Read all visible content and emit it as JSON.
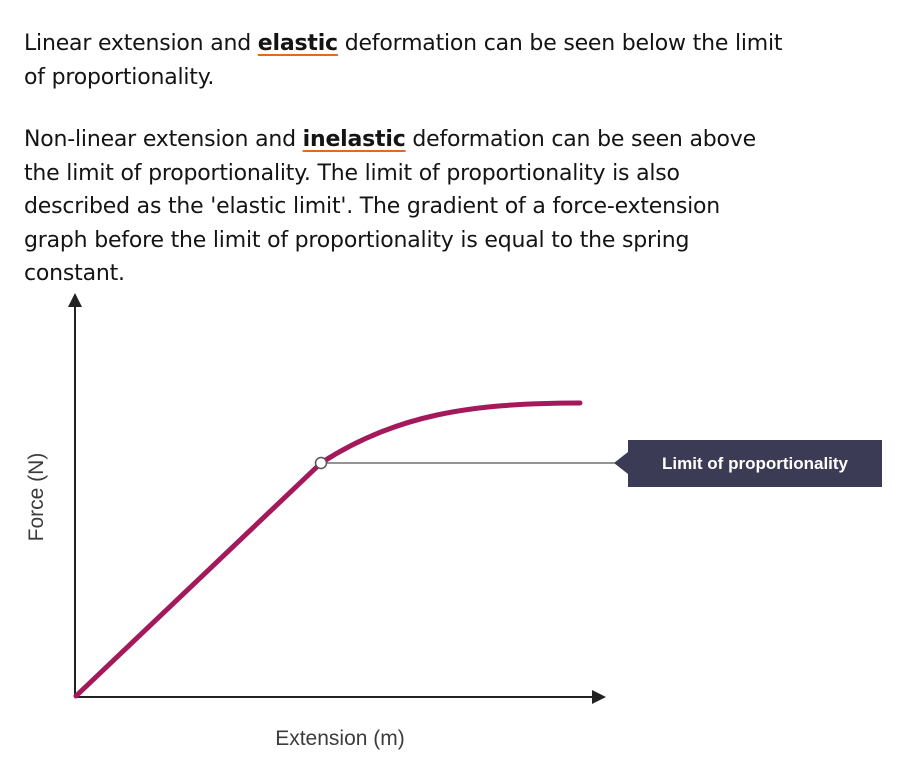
{
  "paragraph1": {
    "before": "Linear extension and ",
    "keyword": "elastic",
    "after": " deformation can be seen below the limit of proportionality."
  },
  "paragraph2": {
    "before": "Non-linear extension and ",
    "keyword": "inelastic",
    "after": " deformation can be seen above the limit of proportionality. The limit of proportionality is also described as the 'elastic limit'. The gradient of a force-extension graph before the limit of proportionality is equal to the spring constant."
  },
  "colors": {
    "curve": "#a3195b",
    "axis": "#222222",
    "callout_bg": "#3c3b55",
    "keyword_underline": "#e06a1f"
  },
  "chart_data": {
    "type": "line",
    "title": "",
    "xlabel": "Extension (m)",
    "ylabel": "Force (N)",
    "ticks": "none",
    "curve_shape": "straight line from origin to the limit of proportionality, then a curve that flattens off",
    "annotation": "Limit of proportionality"
  }
}
